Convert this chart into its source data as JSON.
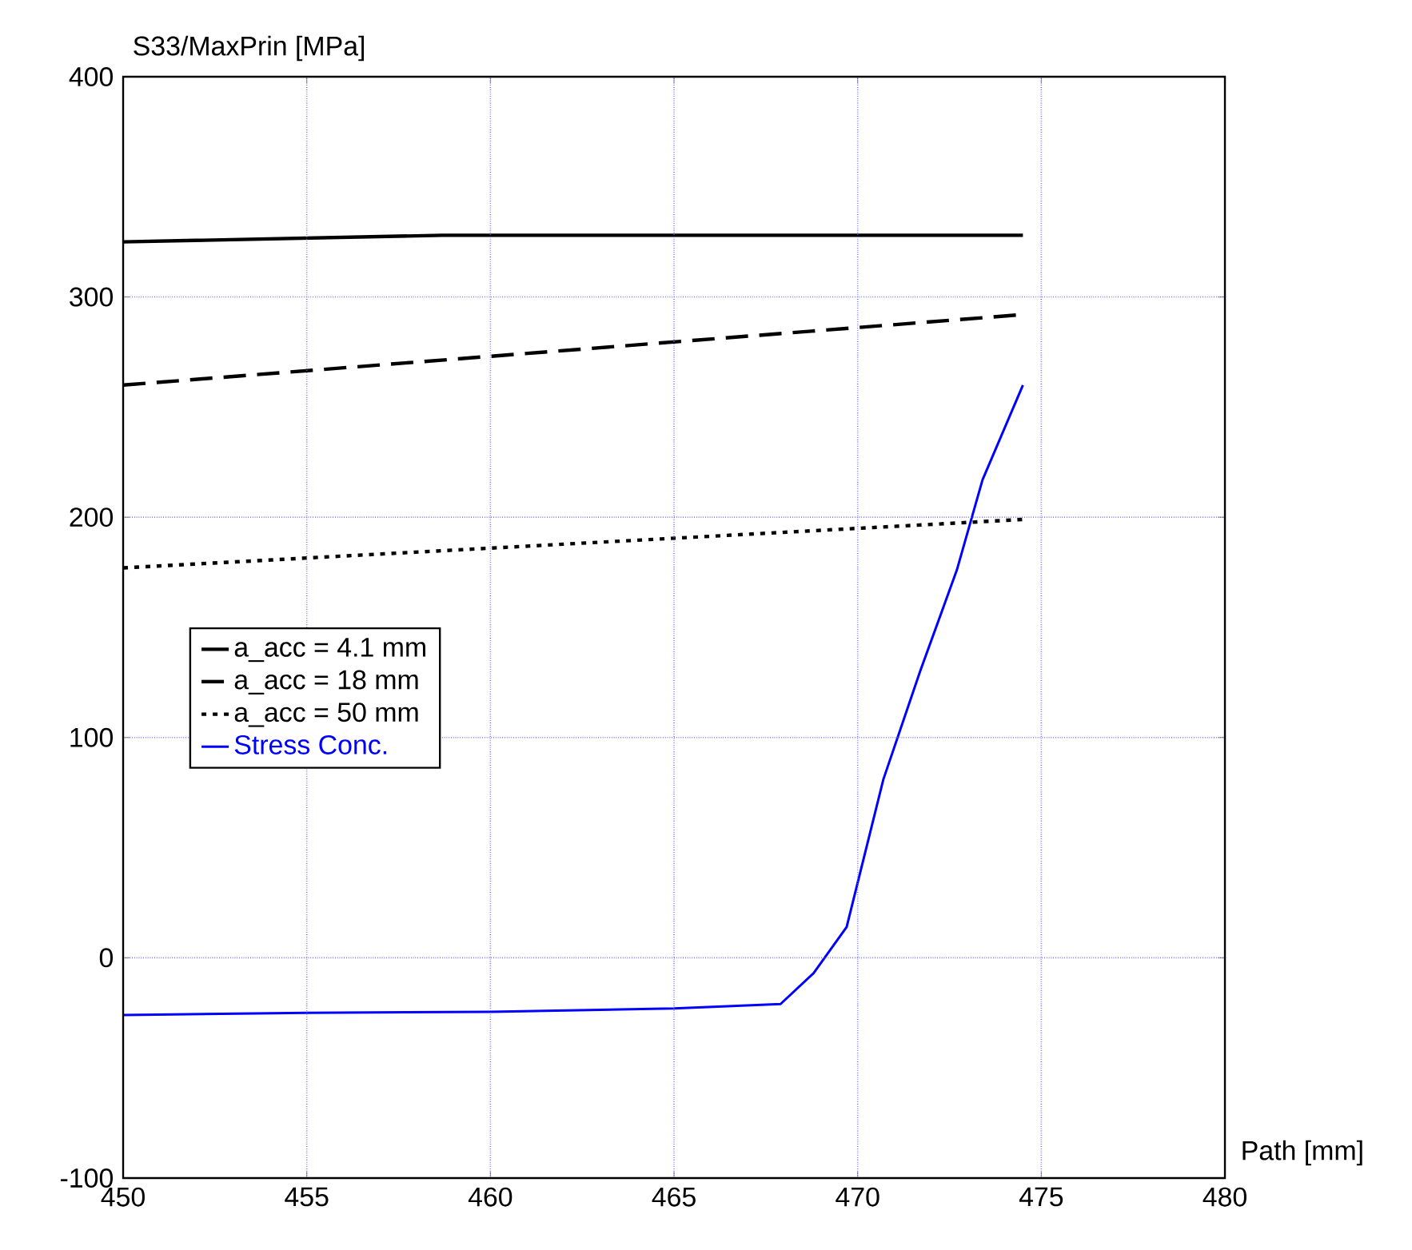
{
  "chart_data": {
    "type": "line",
    "xlabel": "Path [mm]",
    "ylabel": "S33/MaxPrin [MPa]",
    "xlim": [
      450,
      480
    ],
    "xticks": [
      450,
      455,
      460,
      465,
      470,
      475,
      480
    ],
    "ylim": [
      -100,
      400
    ],
    "yticks": [
      -100,
      0,
      100,
      200,
      300,
      400
    ],
    "grid": true,
    "legend": "left",
    "marker": "none",
    "series": [
      {
        "name": "a_acc = 4.1 mm",
        "color": "#000000",
        "line_style": "solid",
        "x": [
          450,
          458.7,
          474.5
        ],
        "values": [
          325,
          328,
          328
        ]
      },
      {
        "name": "a_acc = 18 mm",
        "color": "#000000",
        "line_style": "dashed",
        "x": [
          450,
          474.5
        ],
        "values": [
          260,
          292
        ]
      },
      {
        "name": "a_acc = 50 mm",
        "color": "#000000",
        "line_style": "dotted",
        "x": [
          450,
          474.5
        ],
        "values": [
          177,
          199
        ]
      },
      {
        "name": "Stress Conc.",
        "color": "#0000ff",
        "line_style": "solid",
        "x": [
          450,
          455,
          460,
          465,
          467.9,
          468.8,
          469.7,
          470.7,
          471.7,
          472.7,
          473.4,
          474.5
        ],
        "values": [
          -26,
          -25,
          -24.5,
          -23,
          -21,
          -7,
          14,
          81,
          130,
          176,
          217,
          260
        ]
      }
    ]
  }
}
